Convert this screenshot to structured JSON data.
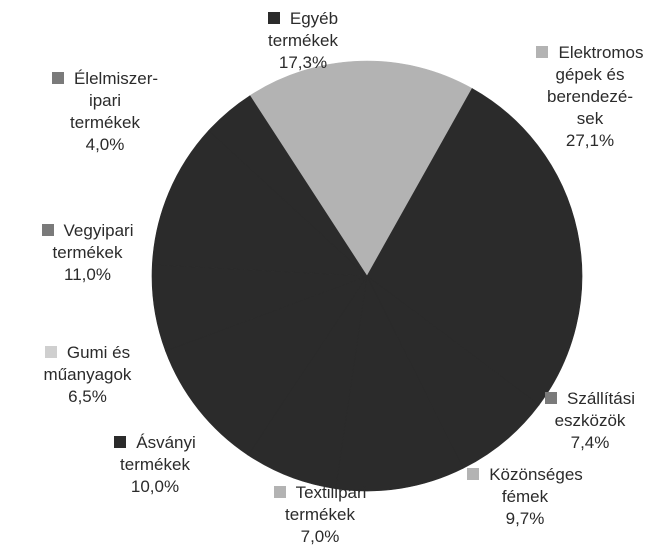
{
  "chart_data": {
    "type": "pie",
    "title": "",
    "slices": [
      {
        "label": "Egyéb\ntermékek",
        "value": 17.3,
        "value_label": "17,3%",
        "color": "#b3b3b3"
      },
      {
        "label": "Elektromos\ngépek és\nberendezé-\nsek",
        "value": 27.1,
        "value_label": "27,1%",
        "color": "#2b2b2b"
      },
      {
        "label": "Szállítási\neszközök",
        "value": 7.4,
        "value_label": "7,4%",
        "color": "#2b2b2b"
      },
      {
        "label": "Közönséges\nfémek",
        "value": 9.7,
        "value_label": "9,7%",
        "color": "#2b2b2b"
      },
      {
        "label": "Textilipari\ntermékek",
        "value": 7.0,
        "value_label": "7,0%",
        "color": "#2b2b2b"
      },
      {
        "label": "Ásványi\ntermékek",
        "value": 10.0,
        "value_label": "10,0%",
        "color": "#2b2b2b"
      },
      {
        "label": "Gumi és\nműanyagok",
        "value": 6.5,
        "value_label": "6,5%",
        "color": "#2b2b2b"
      },
      {
        "label": "Vegyipari\ntermékek",
        "value": 11.0,
        "value_label": "11,0%",
        "color": "#2b2b2b"
      },
      {
        "label": "Élelmiszer-\nipari\ntermékek",
        "value": 4.0,
        "value_label": "4,0%",
        "color": "#2b2b2b"
      }
    ],
    "legend_swatches": [
      "#2b2b2b",
      "#b3b3b3",
      "#7a7a7a",
      "#b3b3b3",
      "#b3b3b3",
      "#2b2b2b",
      "#cfcfcf",
      "#7a7a7a",
      "#7a7a7a"
    ]
  }
}
